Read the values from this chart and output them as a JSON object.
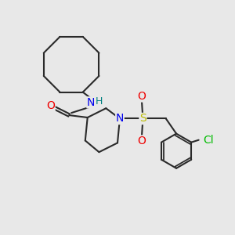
{
  "bg_color": "#e8e8e8",
  "bond_color": "#2a2a2a",
  "N_color": "#0000ee",
  "O_color": "#ee0000",
  "S_color": "#bbbb00",
  "Cl_color": "#00bb00",
  "H_color": "#008080",
  "line_width": 1.5,
  "font_size": 10,
  "figsize": [
    3.0,
    3.0
  ],
  "dpi": 100,
  "xlim": [
    0,
    10
  ],
  "ylim": [
    0,
    10
  ]
}
